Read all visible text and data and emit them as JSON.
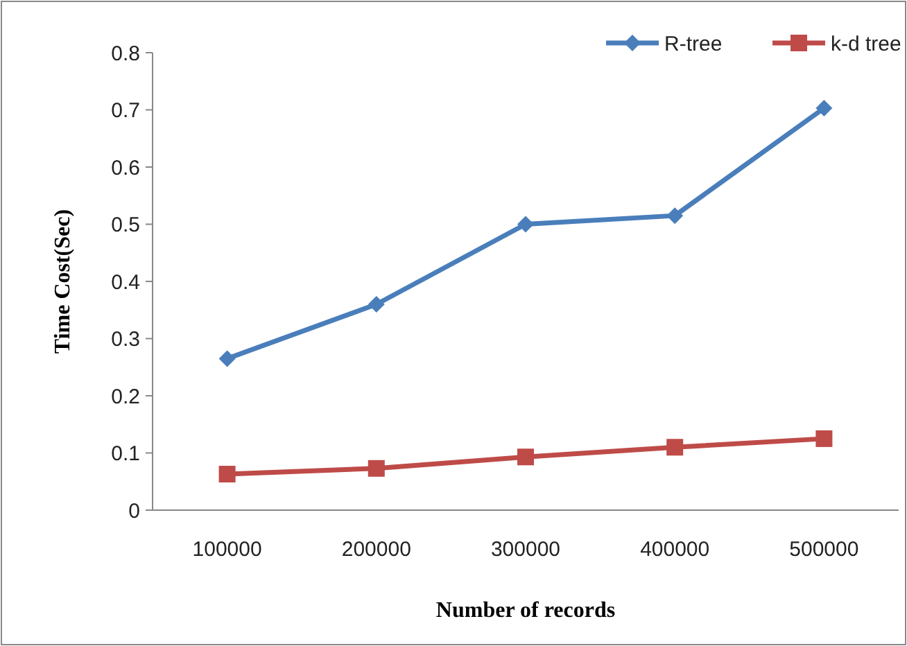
{
  "chart_data": {
    "type": "line",
    "xlabel": "Number of records",
    "ylabel": "Time Cost(Sec)",
    "categories": [
      "100000",
      "200000",
      "300000",
      "400000",
      "500000"
    ],
    "series": [
      {
        "name": "R-tree",
        "color": "#4a7ebb",
        "marker": "diamond",
        "values": [
          0.265,
          0.36,
          0.5,
          0.515,
          0.703
        ]
      },
      {
        "name": "k-d tree",
        "color": "#be4b48",
        "marker": "square",
        "values": [
          0.063,
          0.073,
          0.093,
          0.11,
          0.125
        ]
      }
    ],
    "ylim": [
      0,
      0.8
    ],
    "yticks": [
      0,
      0.1,
      0.2,
      0.3,
      0.4,
      0.5,
      0.6,
      0.7,
      0.8
    ],
    "legend": "top right",
    "grid": false
  }
}
